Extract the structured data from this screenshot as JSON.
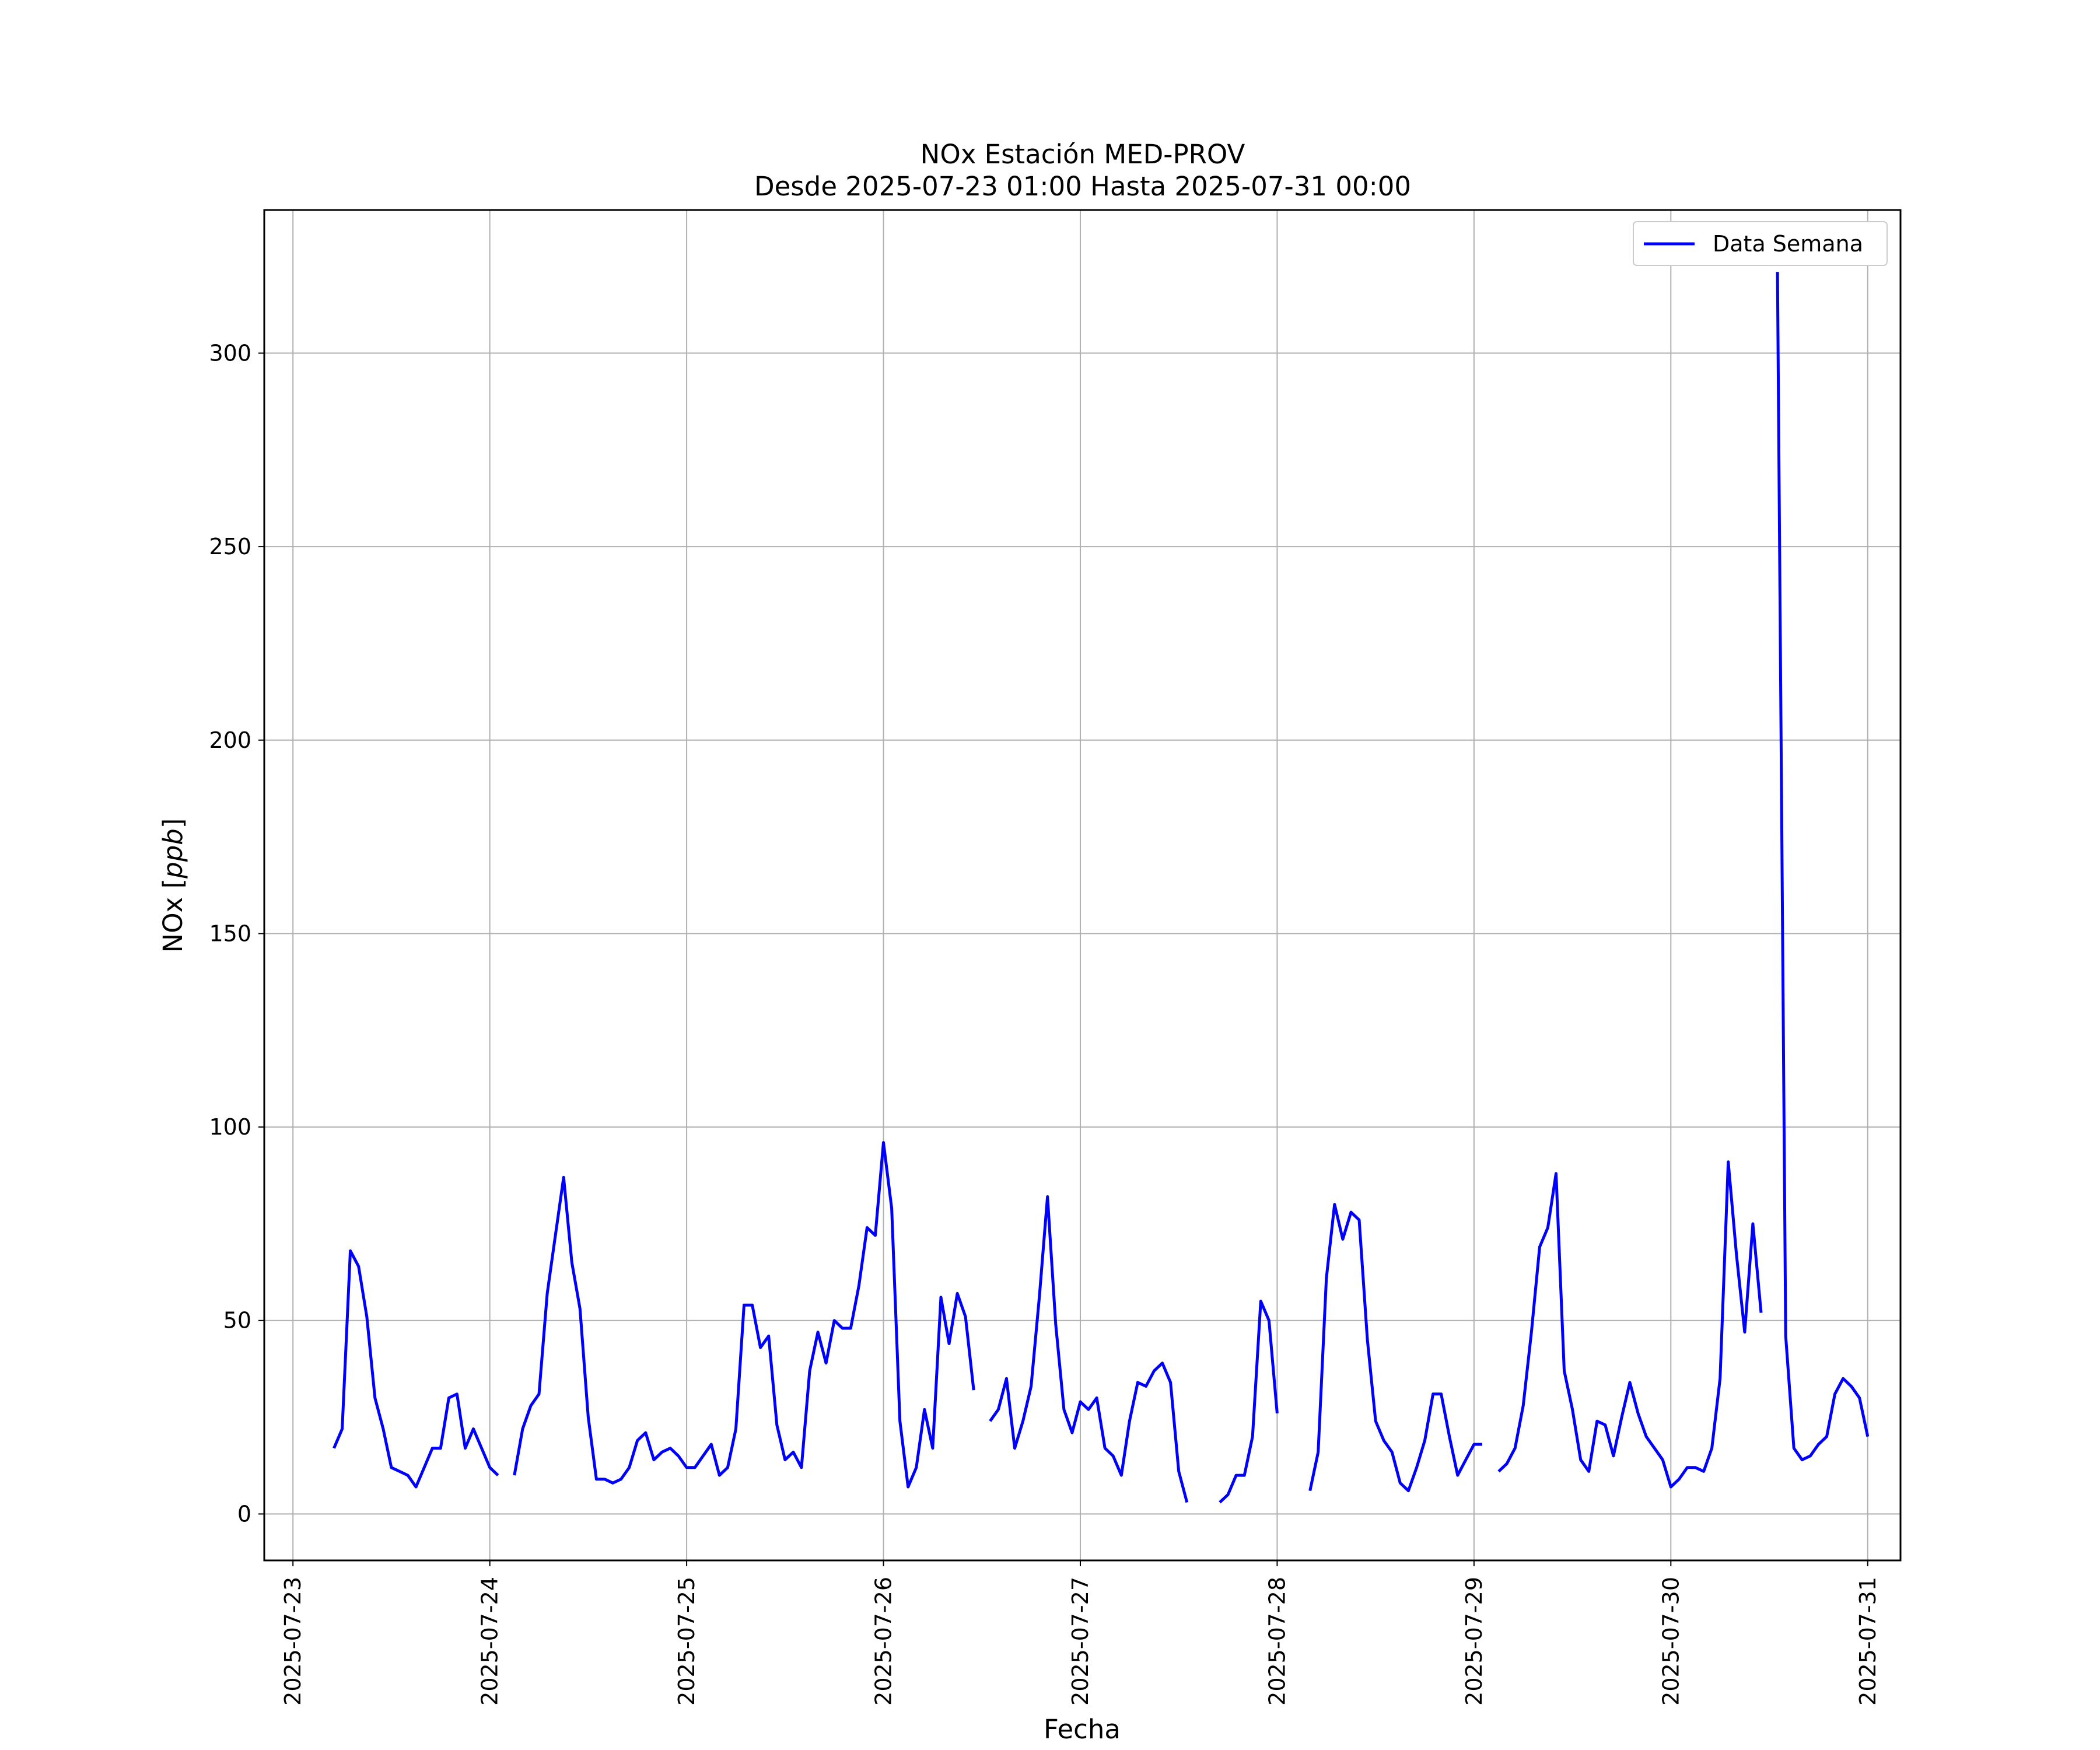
{
  "chart_data": {
    "type": "line",
    "title": "NOx Estación MED-PROV",
    "subtitle": "Desde 2025-07-23 01:00 Hasta 2025-07-31 00:00",
    "xlabel": "Fecha",
    "ylabel": "NOx [ppb]",
    "ylabel_main": "NOx [",
    "ylabel_unit": "ppb",
    "ylabel_close": "]",
    "ylim": [
      -12,
      337
    ],
    "xlim": [
      "2025-07-22T20:30",
      "2025-07-31T04:00"
    ],
    "grid": true,
    "legend_position": "upper right",
    "line_color": "#0000ff",
    "x_ticks": [
      "2025-07-23",
      "2025-07-24",
      "2025-07-25",
      "2025-07-26",
      "2025-07-27",
      "2025-07-28",
      "2025-07-29",
      "2025-07-30",
      "2025-07-31"
    ],
    "y_ticks": [
      0,
      50,
      100,
      150,
      200,
      250,
      300
    ],
    "series": [
      {
        "name": "Data Semana",
        "segments": [
          {
            "start": "2025-07-23T05:00",
            "values": [
              17,
              22,
              68,
              64,
              51,
              30,
              22,
              12,
              11,
              10,
              7,
              12,
              17,
              17,
              30,
              31,
              17,
              22,
              17,
              12,
              10
            ]
          },
          {
            "start": "2025-07-24T03:00",
            "values": [
              10,
              22,
              28,
              31,
              57,
              72,
              87,
              65,
              53,
              25,
              9,
              9,
              8,
              9,
              12,
              19,
              21,
              14,
              16,
              17,
              15,
              12,
              12,
              15,
              18,
              10,
              12,
              22,
              54,
              54,
              43,
              46,
              23,
              14,
              16,
              12,
              37,
              47,
              39,
              50,
              48,
              48,
              59,
              74,
              72,
              96,
              79,
              24,
              7,
              12,
              27,
              17,
              56,
              44,
              57,
              51,
              32
            ]
          },
          {
            "start": "2025-07-26T13:00",
            "values": [
              24,
              27,
              35,
              17,
              24,
              33,
              56,
              82,
              49,
              27,
              21,
              29,
              27,
              30,
              17,
              15,
              10,
              24,
              34,
              33,
              37,
              39,
              34,
              11,
              3
            ]
          },
          {
            "start": "2025-07-27T17:00",
            "values": [
              3,
              5,
              10,
              10,
              20,
              55,
              50,
              26
            ]
          },
          {
            "start": "2025-07-28T04:00",
            "values": [
              6,
              16,
              61,
              80,
              71,
              78,
              76,
              45,
              24,
              19,
              16,
              8,
              6,
              12,
              19,
              31,
              31,
              20,
              10,
              14,
              18,
              18
            ]
          },
          {
            "start": "2025-07-29T03:00",
            "values": [
              11,
              13,
              17,
              28,
              47,
              69,
              74,
              88,
              37,
              27,
              14,
              11,
              24,
              23,
              15,
              25,
              34,
              26,
              20,
              17,
              14,
              7,
              9,
              12,
              12,
              11,
              17,
              35,
              91,
              67,
              47,
              75,
              52
            ]
          },
          {
            "start": "2025-07-30T13:00",
            "values": [
              321,
              46,
              17,
              14,
              15,
              18,
              20,
              31,
              35,
              33,
              30,
              20
            ]
          }
        ]
      }
    ]
  }
}
